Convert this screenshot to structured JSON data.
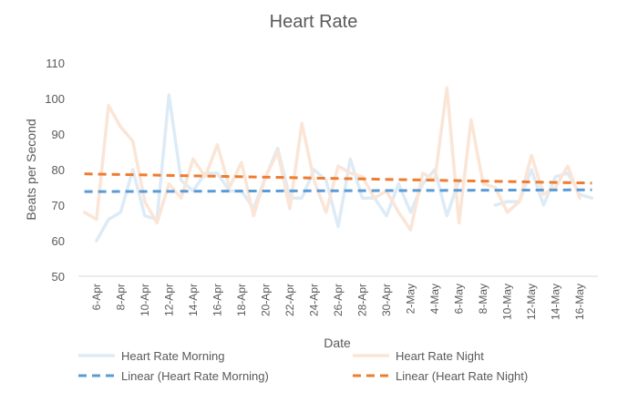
{
  "chart_data": {
    "type": "line",
    "title": "Heart Rate",
    "xlabel": "Date",
    "ylabel": "Beats per Second",
    "ylim": [
      50,
      110
    ],
    "yticks": [
      50,
      60,
      70,
      80,
      90,
      100,
      110
    ],
    "x": [
      "5-Apr",
      "6-Apr",
      "7-Apr",
      "8-Apr",
      "9-Apr",
      "10-Apr",
      "11-Apr",
      "12-Apr",
      "13-Apr",
      "14-Apr",
      "15-Apr",
      "16-Apr",
      "17-Apr",
      "18-Apr",
      "19-Apr",
      "20-Apr",
      "21-Apr",
      "22-Apr",
      "23-Apr",
      "24-Apr",
      "25-Apr",
      "26-Apr",
      "27-Apr",
      "28-Apr",
      "29-Apr",
      "30-Apr",
      "1-May",
      "2-May",
      "3-May",
      "4-May",
      "5-May",
      "6-May",
      "7-May",
      "8-May",
      "9-May",
      "10-May",
      "11-May",
      "12-May",
      "13-May",
      "14-May",
      "15-May",
      "16-May",
      "17-May"
    ],
    "x_tick_labels": [
      "6-Apr",
      "8-Apr",
      "10-Apr",
      "12-Apr",
      "14-Apr",
      "16-Apr",
      "18-Apr",
      "20-Apr",
      "22-Apr",
      "24-Apr",
      "26-Apr",
      "28-Apr",
      "30-Apr",
      "2-May",
      "4-May",
      "6-May",
      "8-May",
      "10-May",
      "12-May",
      "14-May",
      "16-May"
    ],
    "series": [
      {
        "name": "Heart Rate Morning",
        "color": "#DDEBF7",
        "values": [
          null,
          60,
          66,
          68,
          80,
          67,
          66,
          101,
          77,
          74,
          79,
          79,
          74,
          74,
          69,
          78,
          86,
          72,
          72,
          80,
          77,
          64,
          83,
          72,
          72,
          67,
          76,
          68,
          76,
          80,
          67,
          77,
          null,
          null,
          70,
          71,
          71,
          80,
          70,
          78,
          79,
          73,
          72
        ]
      },
      {
        "name": "Heart Rate Night",
        "color": "#FBE5D6",
        "values": [
          68,
          66,
          98,
          92,
          88,
          71,
          65,
          76,
          72,
          83,
          78,
          87,
          75,
          82,
          67,
          78,
          85,
          69,
          93,
          77,
          68,
          81,
          79,
          78,
          72,
          74,
          68,
          63,
          79,
          77,
          103,
          65,
          94,
          76,
          75,
          68,
          71,
          84,
          73,
          75,
          81,
          72,
          null
        ]
      }
    ],
    "trendlines": [
      {
        "name": "Linear (Heart Rate Morning)",
        "color": "#5B9BD5",
        "start": 73.8,
        "end": 74.3
      },
      {
        "name": "Linear (Heart Rate Night)",
        "color": "#ED7D31",
        "start": 78.8,
        "end": 76.2
      }
    ],
    "grid": false,
    "legend_position": "bottom"
  }
}
